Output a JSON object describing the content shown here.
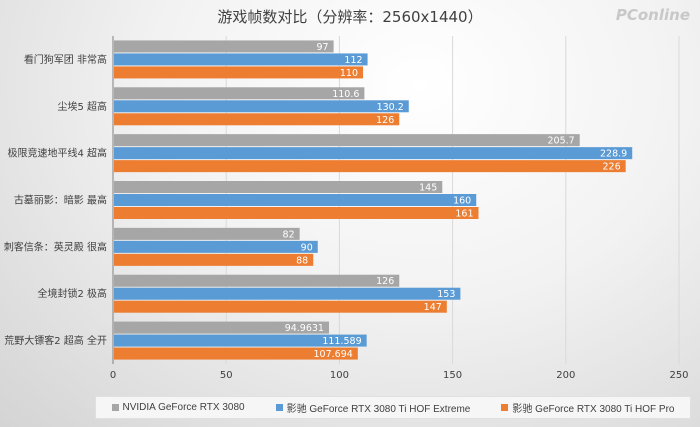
{
  "chart_data": {
    "type": "bar",
    "orientation": "horizontal",
    "title": "游戏帧数对比（分辨率：2560x1440）",
    "categories": [
      "看门狗军团 非常高",
      "尘埃5 超高",
      "极限竞速地平线4 超高",
      "古墓丽影：暗影 最高",
      "刺客信条：英灵殿 很高",
      "全境封锁2 极高",
      "荒野大镖客2 超高 全开"
    ],
    "series": [
      {
        "name": "NVIDIA GeForce RTX 3080",
        "color": "#a6a6a6",
        "values": [
          97,
          110.6,
          205.7,
          145,
          82,
          126,
          94.9631
        ],
        "labels": [
          "97",
          "110.6",
          "205.7",
          "145",
          "82",
          "126",
          "94.9631"
        ]
      },
      {
        "name": "影驰 GeForce RTX 3080 Ti HOF Extreme",
        "color": "#5b9bd5",
        "values": [
          112,
          130.2,
          228.9,
          160,
          90,
          153,
          111.589
        ],
        "labels": [
          "112",
          "130.2",
          "228.9",
          "160",
          "90",
          "153",
          "111.589"
        ]
      },
      {
        "name": "影驰 GeForce RTX 3080 Ti HOF Pro",
        "color": "#ed7d31",
        "values": [
          110,
          126,
          226,
          161,
          88,
          147,
          107.694
        ],
        "labels": [
          "110",
          "126",
          "226",
          "161",
          "88",
          "147",
          "107.694"
        ]
      }
    ],
    "xlim": [
      0,
      250
    ],
    "xticks": [
      "0",
      "50",
      "100",
      "150",
      "200",
      "250"
    ],
    "grid": true,
    "legend": "bottom"
  },
  "watermark": "PConline"
}
